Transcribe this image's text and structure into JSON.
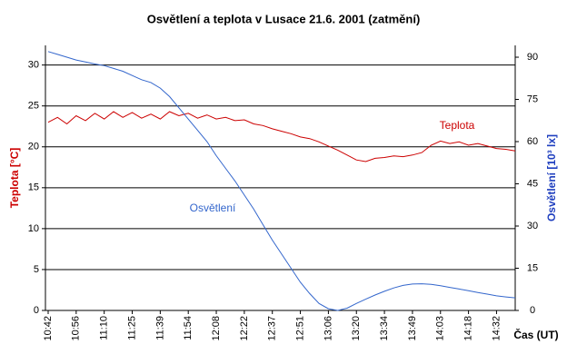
{
  "chart_data": {
    "type": "line",
    "title": "Osvětlení a teplota v Lusace 21.6. 2001 (zatmění)",
    "x_label": "Čas (UT)",
    "y_label": "Teplota [°C]",
    "y2_label": "Osvětlení [10³ lx]",
    "categories": [
      "10:42",
      null,
      null,
      "10:56",
      null,
      null,
      "11:10",
      null,
      null,
      "11:25",
      null,
      null,
      "11:39",
      null,
      null,
      "11:54",
      null,
      null,
      "12:08",
      null,
      null,
      "12:22",
      null,
      null,
      "12:37",
      null,
      null,
      "12:51",
      null,
      null,
      "13:06",
      null,
      null,
      "13:20",
      null,
      null,
      "13:34",
      null,
      null,
      "13:49",
      null,
      null,
      "14:03",
      null,
      null,
      "14:18",
      null,
      null,
      "14:32",
      null,
      null
    ],
    "ylim": [
      0,
      32.4
    ],
    "yticks": [
      0,
      5,
      10,
      15,
      20,
      25,
      30
    ],
    "y2lim": [
      0,
      94.2
    ],
    "y2ticks": [
      0,
      15,
      30,
      45,
      60,
      75,
      90
    ],
    "grid": true,
    "series": [
      {
        "name": "Teplota",
        "color": "#cc0000",
        "values": [
          23,
          23.6,
          22.8,
          23.8,
          23.2,
          24.1,
          23.4,
          24.3,
          23.6,
          24.2,
          23.5,
          24,
          23.4,
          24.3,
          23.8,
          24.1,
          23.5,
          23.9,
          23.4,
          23.6,
          23.2,
          23.3,
          22.8,
          22.6,
          22.2,
          21.9,
          21.6,
          21.2,
          21,
          20.6,
          20.1,
          19.6,
          19,
          18.4,
          18.2,
          18.6,
          18.7,
          18.9,
          18.8,
          19,
          19.3,
          20.2,
          20.7,
          20.4,
          20.6,
          20.2,
          20.4,
          20.1,
          19.8,
          19.7,
          19.5
        ]
      },
      {
        "name": "Osvětlení",
        "color": "#3366cc",
        "axis": "y2",
        "values": [
          92,
          91,
          90,
          89,
          88.3,
          87.6,
          87,
          86,
          85,
          83.5,
          82,
          81,
          79,
          76,
          72,
          68,
          64,
          60,
          55,
          50.5,
          46,
          41,
          36,
          30.5,
          25,
          20,
          15,
          10,
          6,
          2.5,
          0.6,
          0,
          0.8,
          2.5,
          4,
          5.5,
          6.8,
          8,
          8.9,
          9.4,
          9.5,
          9.3,
          8.8,
          8.2,
          7.6,
          7,
          6.4,
          5.8,
          5.2,
          4.8,
          4.5
        ]
      }
    ]
  }
}
